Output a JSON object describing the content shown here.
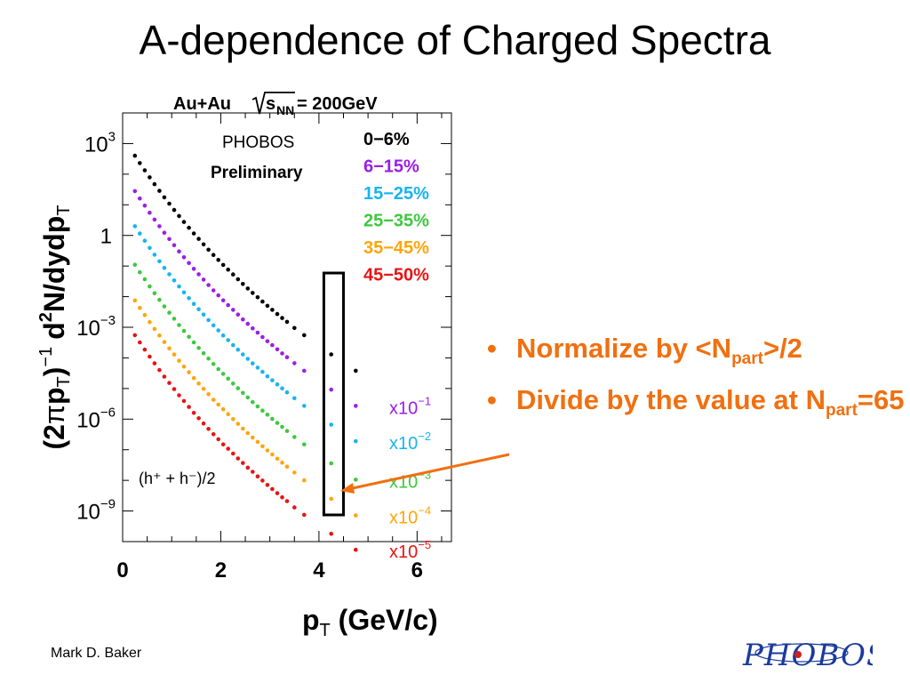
{
  "slide": {
    "title": "A-dependence of Charged Spectra",
    "author": "Mark D. Baker",
    "bullet_1_a": "Normalize by <N",
    "bullet_1_sub": "part",
    "bullet_1_b": ">/2",
    "bullet_2_a": "Divide by the value at N",
    "bullet_2_sub": "part",
    "bullet_2_b": "=65",
    "bullet_symbol": "•",
    "logo_text": "PHOBOS",
    "colors": {
      "bullet_text": "#f07010",
      "arrow": "#f07010",
      "title": "#000000"
    }
  },
  "chart_data": {
    "type": "scatter",
    "title": "Au+Au √sNN = 200GeV",
    "title_parts": {
      "a": "Au+Au ",
      "b": "s",
      "c": "NN",
      "d": " = 200GeV"
    },
    "annotation_phobos": "PHOBOS",
    "annotation_preliminary": "Preliminary",
    "annotation_particles": "(h⁺ + h⁻)/2",
    "ylabel": "(2πp_T)^-1 d²N/dydp_T",
    "ylabel_parts": {
      "a": "(2",
      "b": "π",
      "c": "p",
      "d": "T",
      "e": ")",
      "f": "−1",
      "g": "d",
      "h": "2",
      "i": "N/dydp",
      "j": "T"
    },
    "xlabel": "p_T (GeV/c)",
    "xlabel_parts": {
      "a": "p",
      "b": "T",
      "c": " (GeV/c)"
    },
    "x_scale": "linear",
    "y_scale": "log",
    "xlim": [
      0,
      6.7
    ],
    "ylim": [
      1e-10,
      10000.0
    ],
    "x_ticks": [
      0,
      2,
      4,
      6
    ],
    "x_tick_labels": [
      "0",
      "2",
      "4",
      "6"
    ],
    "y_ticks": [
      {
        "value": 1000,
        "mantissa": "10",
        "exp": "3"
      },
      {
        "value": 1,
        "mantissa": "1",
        "exp": ""
      },
      {
        "value": 0.001,
        "mantissa": "10",
        "exp": "−3"
      },
      {
        "value": 1e-06,
        "mantissa": "10",
        "exp": "−6"
      },
      {
        "value": 1e-09,
        "mantissa": "10",
        "exp": "−9"
      }
    ],
    "grid": false,
    "legend_position": "top-right",
    "highlight_box_x": [
      4.1,
      4.5
    ],
    "highlight_point_x": 4.25,
    "series": [
      {
        "name": "0−6%",
        "color": "#000000",
        "scale_label": {
          "base": "",
          "exp": ""
        },
        "x": [
          0.25,
          0.35,
          0.45,
          0.55,
          0.65,
          0.75,
          0.85,
          0.95,
          1.05,
          1.15,
          1.25,
          1.35,
          1.45,
          1.55,
          1.65,
          1.75,
          1.85,
          1.95,
          2.05,
          2.15,
          2.25,
          2.35,
          2.45,
          2.55,
          2.65,
          2.75,
          2.85,
          2.95,
          3.05,
          3.15,
          3.25,
          3.35,
          3.5,
          3.7,
          4.25,
          4.75
        ],
        "y": [
          400,
          230,
          134,
          79,
          47,
          28.5,
          17.5,
          10.9,
          6.8,
          4.3,
          2.75,
          1.78,
          1.16,
          0.77,
          0.51,
          0.34,
          0.23,
          0.158,
          0.109,
          0.076,
          0.053,
          0.037,
          0.026,
          0.0185,
          0.0132,
          0.0095,
          0.0069,
          0.005,
          0.0037,
          0.0027,
          0.002,
          0.0015,
          0.00095,
          0.00055,
          0.00013,
          3.8e-05
        ]
      },
      {
        "name": "6−15%",
        "color": "#9b1ee6",
        "scale_label": {
          "base": "x10",
          "exp": "−1"
        },
        "x": [
          0.25,
          0.35,
          0.45,
          0.55,
          0.65,
          0.75,
          0.85,
          0.95,
          1.05,
          1.15,
          1.25,
          1.35,
          1.45,
          1.55,
          1.65,
          1.75,
          1.85,
          1.95,
          2.05,
          2.15,
          2.25,
          2.35,
          2.45,
          2.55,
          2.65,
          2.75,
          2.85,
          2.95,
          3.05,
          3.15,
          3.25,
          3.35,
          3.5,
          3.7,
          4.25,
          4.75
        ],
        "y": [
          28,
          16.1,
          9.4,
          5.5,
          3.3,
          2,
          1.22,
          0.76,
          0.48,
          0.3,
          0.193,
          0.125,
          0.081,
          0.054,
          0.036,
          0.024,
          0.0161,
          0.011,
          0.0076,
          0.0053,
          0.0037,
          0.0026,
          0.0018,
          0.0013,
          0.00092,
          0.00067,
          0.00048,
          0.00035,
          0.00026,
          0.00019,
          0.00014,
          0.000105,
          6.7e-05,
          3.8e-05,
          9.2e-06,
          2.7e-06
        ]
      },
      {
        "name": "15−25%",
        "color": "#18b4f0",
        "scale_label": {
          "base": "x10",
          "exp": "−2"
        },
        "x": [
          0.25,
          0.35,
          0.45,
          0.55,
          0.65,
          0.75,
          0.85,
          0.95,
          1.05,
          1.15,
          1.25,
          1.35,
          1.45,
          1.55,
          1.65,
          1.75,
          1.85,
          1.95,
          2.05,
          2.15,
          2.25,
          2.35,
          2.45,
          2.55,
          2.65,
          2.75,
          2.85,
          2.95,
          3.05,
          3.15,
          3.25,
          3.35,
          3.5,
          3.7,
          4.25,
          4.75
        ],
        "y": [
          2,
          1.15,
          0.67,
          0.39,
          0.235,
          0.143,
          0.087,
          0.054,
          0.034,
          0.0215,
          0.0138,
          0.0089,
          0.0058,
          0.0039,
          0.0026,
          0.00172,
          0.00115,
          0.00079,
          0.00054,
          0.00038,
          0.00026,
          0.000185,
          0.00013,
          9.3e-05,
          6.6e-05,
          4.8e-05,
          3.5e-05,
          2.5e-05,
          1.86e-05,
          1.37e-05,
          1.01e-05,
          7.5e-06,
          4.8e-06,
          2.7e-06,
          6.6e-07,
          1.9e-07
        ]
      },
      {
        "name": "25−35%",
        "color": "#3ec83e",
        "scale_label": {
          "base": "x10",
          "exp": "−3"
        },
        "x": [
          0.25,
          0.35,
          0.45,
          0.55,
          0.65,
          0.75,
          0.85,
          0.95,
          1.05,
          1.15,
          1.25,
          1.35,
          1.45,
          1.55,
          1.65,
          1.75,
          1.85,
          1.95,
          2.05,
          2.15,
          2.25,
          2.35,
          2.45,
          2.55,
          2.65,
          2.75,
          2.85,
          2.95,
          3.05,
          3.15,
          3.25,
          3.35,
          3.5,
          3.7,
          4.25,
          4.75
        ],
        "y": [
          0.11,
          0.063,
          0.037,
          0.0215,
          0.0129,
          0.0079,
          0.0048,
          0.003,
          0.0019,
          0.00118,
          0.00076,
          0.00049,
          0.00032,
          0.00021,
          0.000142,
          9.5e-05,
          6.3e-05,
          4.3e-05,
          3e-05,
          2.1e-05,
          1.45e-05,
          1.02e-05,
          7.2e-06,
          5.1e-06,
          3.6e-06,
          2.6e-06,
          1.9e-06,
          1.4e-06,
          1.02e-06,
          7.5e-07,
          5.6e-07,
          4.1e-07,
          2.6e-07,
          1.5e-07,
          3.6e-08,
          1.05e-08
        ]
      },
      {
        "name": "35−45%",
        "color": "#ffa50a",
        "scale_label": {
          "base": "x10",
          "exp": "−4"
        },
        "x": [
          0.25,
          0.35,
          0.45,
          0.55,
          0.65,
          0.75,
          0.85,
          0.95,
          1.05,
          1.15,
          1.25,
          1.35,
          1.45,
          1.55,
          1.65,
          1.75,
          1.85,
          1.95,
          2.05,
          2.15,
          2.25,
          2.35,
          2.45,
          2.55,
          2.65,
          2.75,
          2.85,
          2.95,
          3.05,
          3.15,
          3.25,
          3.35,
          3.5,
          3.7,
          4.25,
          4.75
        ],
        "y": [
          0.0075,
          0.0043,
          0.0025,
          0.00147,
          0.00088,
          0.00054,
          0.00033,
          0.000204,
          0.000129,
          8.1e-05,
          5.2e-05,
          3.4e-05,
          2.2e-05,
          1.45e-05,
          9.7e-06,
          6.5e-06,
          4.3e-06,
          3e-06,
          2.1e-06,
          1.45e-06,
          1e-06,
          7e-07,
          4.9e-07,
          3.5e-07,
          2.5e-07,
          1.8e-07,
          1.3e-07,
          9.5e-08,
          7e-08,
          5.1e-08,
          3.8e-08,
          2.8e-08,
          1.8e-08,
          1e-08,
          2.5e-09,
          7.2e-10
        ]
      },
      {
        "name": "45−50%",
        "color": "#e61414",
        "scale_label": {
          "base": "x10",
          "exp": "−5"
        },
        "x": [
          0.25,
          0.35,
          0.45,
          0.55,
          0.65,
          0.75,
          0.85,
          0.95,
          1.05,
          1.15,
          1.25,
          1.35,
          1.45,
          1.55,
          1.65,
          1.75,
          1.85,
          1.95,
          2.05,
          2.15,
          2.25,
          2.35,
          2.45,
          2.55,
          2.65,
          2.75,
          2.85,
          2.95,
          3.05,
          3.15,
          3.25,
          3.35,
          3.5,
          3.7,
          4.25,
          4.75
        ],
        "y": [
          0.00055,
          0.00032,
          0.000186,
          0.00011,
          6.6e-05,
          4e-05,
          2.45e-05,
          1.52e-05,
          9.6e-06,
          6e-06,
          3.9e-06,
          2.5e-06,
          1.6e-06,
          1.07e-06,
          7.2e-07,
          4.8e-07,
          3.2e-07,
          2.2e-07,
          1.5e-07,
          1.08e-07,
          7.5e-08,
          5.2e-08,
          3.7e-08,
          2.6e-08,
          1.9e-08,
          1.35e-08,
          9.8e-09,
          7.1e-09,
          5.2e-09,
          3.8e-09,
          2.8e-09,
          2.1e-09,
          1.3e-09,
          7.5e-10,
          1.8e-10,
          5.4e-11
        ]
      }
    ]
  }
}
